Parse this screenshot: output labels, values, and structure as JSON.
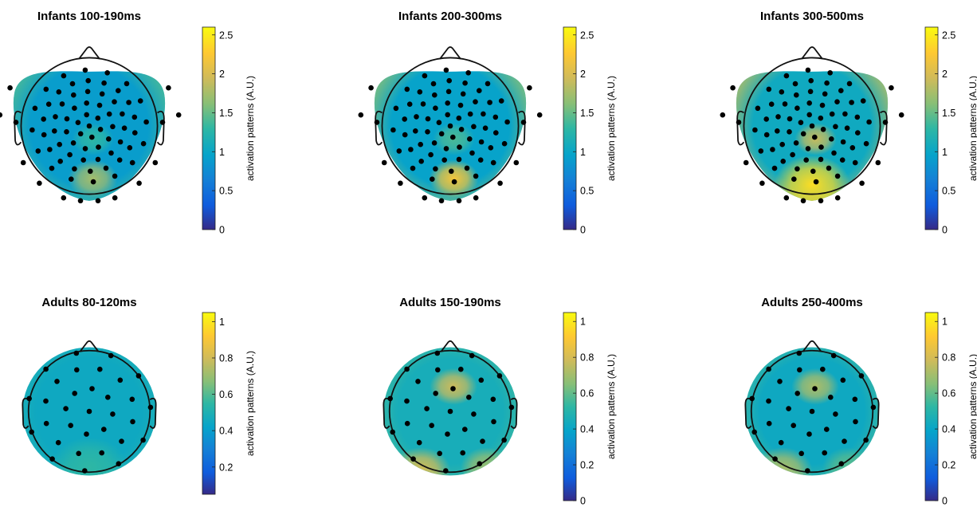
{
  "chart_data": [
    {
      "type": "heatmap",
      "title": "Infants 100-190ms",
      "colorbar": {
        "label": "activation patterns (A.U.)",
        "ticks": [
          "0",
          "0.5",
          "1",
          "1.5",
          "2",
          "2.5"
        ],
        "range": [
          0,
          2.6
        ]
      },
      "head_shape": "infant",
      "electrode_count": 80,
      "activation": {
        "background": 0.9,
        "peaks": [
          {
            "region": "occipital-midline",
            "value": 1.75
          },
          {
            "region": "lateral-edges",
            "value": 1.4
          },
          {
            "region": "central-midline",
            "value": 1.3
          }
        ]
      }
    },
    {
      "type": "heatmap",
      "title": "Infants 200-300ms",
      "colorbar": {
        "label": "activation patterns (A.U.)",
        "ticks": [
          "0",
          "0.5",
          "1",
          "1.5",
          "2",
          "2.5"
        ],
        "range": [
          0,
          2.6
        ]
      },
      "head_shape": "infant",
      "electrode_count": 80,
      "activation": {
        "background": 0.95,
        "peaks": [
          {
            "region": "occipital-midline",
            "value": 2.2
          },
          {
            "region": "lateral-edges",
            "value": 1.6
          },
          {
            "region": "central-midline",
            "value": 1.4
          }
        ]
      }
    },
    {
      "type": "heatmap",
      "title": "Infants 300-500ms",
      "colorbar": {
        "label": "activation patterns (A.U.)",
        "ticks": [
          "0",
          "0.5",
          "1",
          "1.5",
          "2",
          "2.5"
        ],
        "range": [
          0,
          2.6
        ]
      },
      "head_shape": "infant",
      "electrode_count": 80,
      "activation": {
        "background": 1.05,
        "peaks": [
          {
            "region": "occipital-broad",
            "value": 2.4
          },
          {
            "region": "lateral-edges",
            "value": 1.8
          },
          {
            "region": "central-midline",
            "value": 1.9
          }
        ]
      }
    },
    {
      "type": "heatmap",
      "title": "Adults 80-120ms",
      "colorbar": {
        "label": "activation patterns (A.U.)",
        "ticks": [
          "0.2",
          "0.4",
          "0.6",
          "0.8",
          "1"
        ],
        "range": [
          0.05,
          1.05
        ]
      },
      "head_shape": "adult",
      "electrode_count": 32,
      "activation": {
        "background": 0.45,
        "peaks": [
          {
            "region": "occipital",
            "value": 0.55
          },
          {
            "region": "rim",
            "value": 0.5
          }
        ]
      }
    },
    {
      "type": "heatmap",
      "title": "Adults 150-190ms",
      "colorbar": {
        "label": "activation patterns (A.U.)",
        "ticks": [
          "0",
          "0.2",
          "0.4",
          "0.6",
          "0.8",
          "1"
        ],
        "range": [
          0,
          1.05
        ]
      },
      "head_shape": "adult",
      "electrode_count": 32,
      "activation": {
        "background": 0.45,
        "peaks": [
          {
            "region": "frontocentral",
            "value": 0.78
          },
          {
            "region": "left-occipital",
            "value": 0.8
          },
          {
            "region": "right-occipital",
            "value": 0.68
          },
          {
            "region": "rim",
            "value": 0.55
          }
        ]
      }
    },
    {
      "type": "heatmap",
      "title": "Adults 250-400ms",
      "colorbar": {
        "label": "activation patterns (A.U.)",
        "ticks": [
          "0",
          "0.2",
          "0.4",
          "0.6",
          "0.8",
          "1"
        ],
        "range": [
          0,
          1.05
        ]
      },
      "head_shape": "adult",
      "electrode_count": 32,
      "activation": {
        "background": 0.42,
        "peaks": [
          {
            "region": "frontocentral",
            "value": 0.72
          },
          {
            "region": "left-occipital",
            "value": 0.72
          },
          {
            "region": "right-occipital",
            "value": 0.58
          },
          {
            "region": "rim",
            "value": 0.55
          }
        ]
      }
    }
  ],
  "colormap": "parula"
}
